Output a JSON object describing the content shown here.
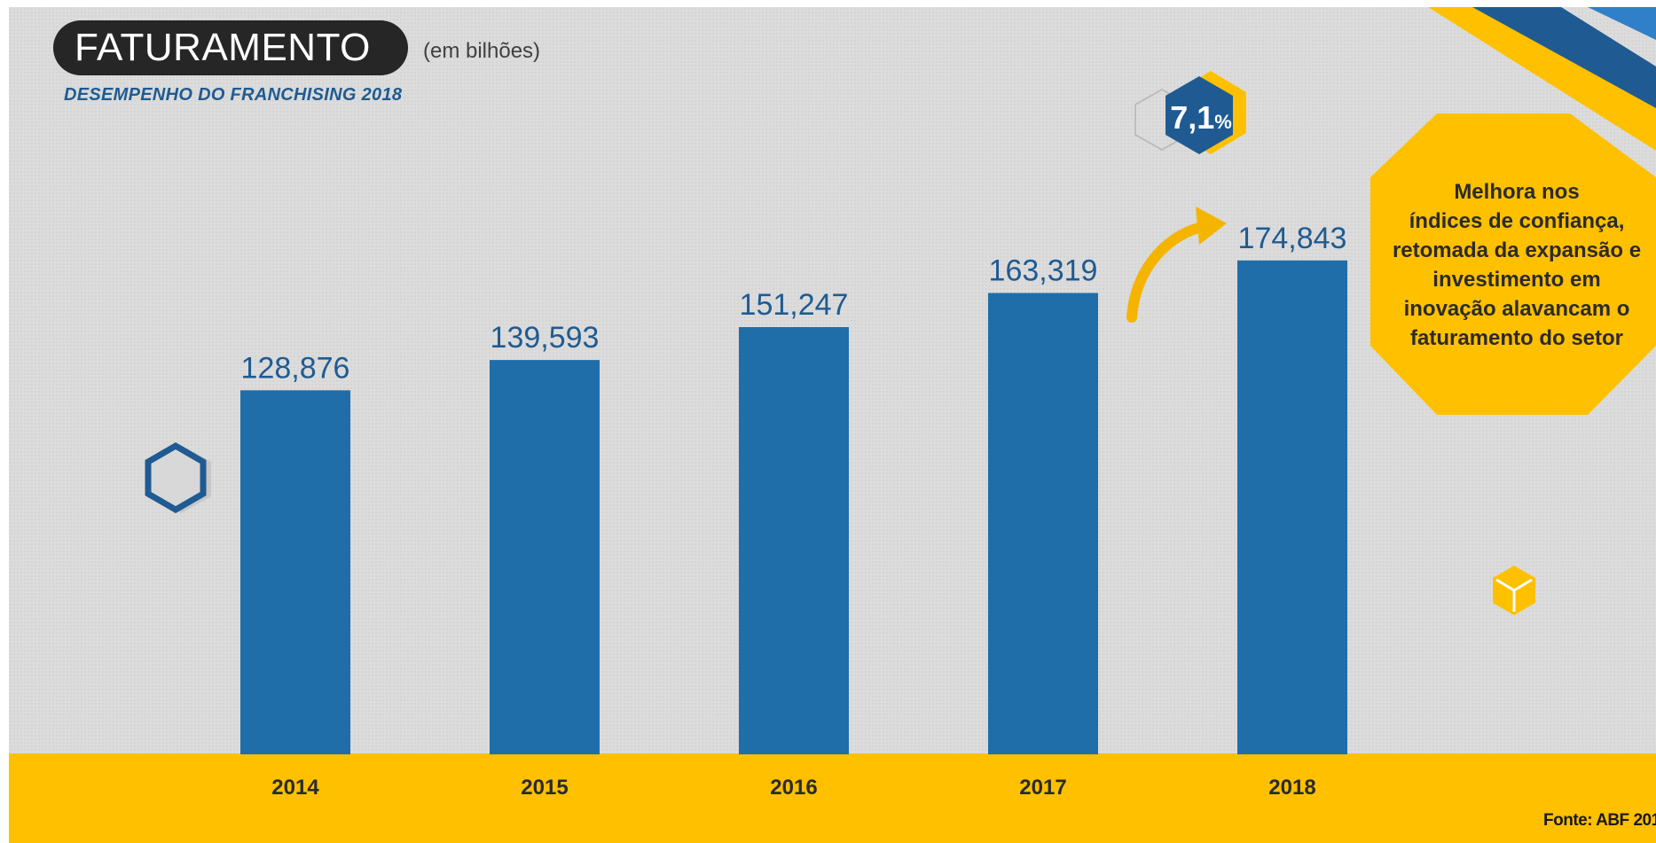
{
  "header": {
    "title": "FATURAMENTO",
    "unit_note": "(em bilhões)",
    "subtitle": "DESEMPENHO DO FRANCHISING 2018"
  },
  "growth_badge": {
    "value": "7,1",
    "unit": "%"
  },
  "callout": {
    "lines": [
      "Melhora nos",
      "índices de confiança,",
      "retomada da expansão e",
      "investimento em",
      "inovação alavancam o",
      "faturamento do setor"
    ]
  },
  "source_note": "Fonte: ABF 201",
  "colors": {
    "bar": "#1f6eaa",
    "value_label": "#1f5b92",
    "band": "#ffc000",
    "badge": "#1f5b92",
    "callout": "#ffc000"
  },
  "chart_data": {
    "type": "bar",
    "categories": [
      "2014",
      "2015",
      "2016",
      "2017",
      "2018"
    ],
    "values": [
      128.876,
      139.593,
      151.247,
      163.319,
      174.843
    ],
    "value_labels": [
      "128,876",
      "139,593",
      "151,247",
      "163,319",
      "174,843"
    ],
    "title": "FATURAMENTO",
    "subtitle": "DESEMPENHO DO FRANCHISING 2018",
    "xlabel": "",
    "ylabel": "",
    "ylim": [
      0,
      200
    ],
    "grid": false,
    "legend": "none"
  }
}
